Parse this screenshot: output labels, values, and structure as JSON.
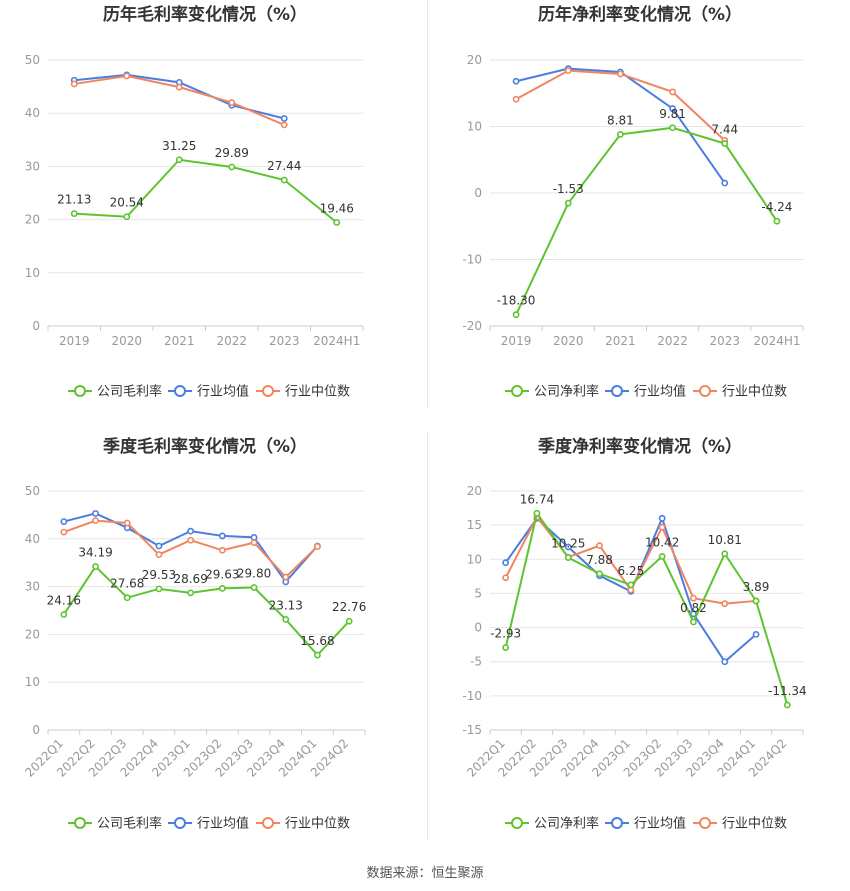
{
  "colors": {
    "company": "#5cc42f",
    "avg": "#4a7de0",
    "median": "#f0855e",
    "grid": "#e6e6e6",
    "axis": "#999999",
    "title": "#333333"
  },
  "legend": {
    "gross": "公司毛利率",
    "net": "公司净利率",
    "avg": "行业均值",
    "median": "行业中位数"
  },
  "footer": "数据来源：恒生聚源",
  "chart_data": [
    {
      "type": "line",
      "title": "历年毛利率变化情况（%）",
      "categories": [
        "2019",
        "2020",
        "2021",
        "2022",
        "2023",
        "2024H1"
      ],
      "ylim": [
        0,
        50
      ],
      "yticks": [
        0,
        10,
        20,
        30,
        40,
        50
      ],
      "series": [
        {
          "name": "公司毛利率",
          "key": "company",
          "values": [
            21.13,
            20.54,
            31.25,
            29.89,
            27.44,
            19.46
          ],
          "labels": [
            "21.13",
            "20.54",
            "31.25",
            "29.89",
            "27.44",
            "19.46"
          ]
        },
        {
          "name": "行业均值",
          "key": "avg",
          "values": [
            46.2,
            47.2,
            45.8,
            41.5,
            39.0,
            null
          ]
        },
        {
          "name": "行业中位数",
          "key": "median",
          "values": [
            45.5,
            47.0,
            44.9,
            42.0,
            37.8,
            null
          ]
        }
      ]
    },
    {
      "type": "line",
      "title": "历年净利率变化情况（%）",
      "categories": [
        "2019",
        "2020",
        "2021",
        "2022",
        "2023",
        "2024H1"
      ],
      "ylim": [
        -20,
        20
      ],
      "yticks": [
        -20,
        -10,
        0,
        10,
        20
      ],
      "series": [
        {
          "name": "公司净利率",
          "key": "company",
          "values": [
            -18.3,
            -1.53,
            8.81,
            9.81,
            7.44,
            -4.24
          ],
          "labels": [
            "-18.30",
            "-1.53",
            "8.81",
            "9.81",
            "7.44",
            "-4.24"
          ]
        },
        {
          "name": "行业均值",
          "key": "avg",
          "values": [
            16.8,
            18.7,
            18.2,
            12.7,
            1.5,
            null
          ]
        },
        {
          "name": "行业中位数",
          "key": "median",
          "values": [
            14.1,
            18.4,
            17.9,
            15.2,
            7.9,
            null
          ]
        }
      ]
    },
    {
      "type": "line",
      "title": "季度毛利率变化情况（%）",
      "categories": [
        "2022Q1",
        "2022Q2",
        "2022Q3",
        "2022Q4",
        "2023Q1",
        "2023Q2",
        "2023Q3",
        "2023Q4",
        "2024Q1",
        "2024Q2"
      ],
      "ylim": [
        0,
        50
      ],
      "yticks": [
        0,
        10,
        20,
        30,
        40,
        50
      ],
      "series": [
        {
          "name": "公司毛利率",
          "key": "company",
          "values": [
            24.16,
            34.19,
            27.68,
            29.53,
            28.69,
            29.63,
            29.8,
            23.13,
            15.68,
            22.76
          ],
          "labels": [
            "24.16",
            "34.19",
            "27.68",
            "29.53",
            "28.69",
            "29.63",
            "29.80",
            "23.13",
            "15.68",
            "22.76"
          ]
        },
        {
          "name": "行业均值",
          "key": "avg",
          "values": [
            43.6,
            45.3,
            42.3,
            38.5,
            41.6,
            40.6,
            40.3,
            31.0,
            38.5,
            null
          ]
        },
        {
          "name": "行业中位数",
          "key": "median",
          "values": [
            41.4,
            43.8,
            43.3,
            36.7,
            39.7,
            37.6,
            39.2,
            32.0,
            38.4,
            null
          ]
        }
      ]
    },
    {
      "type": "line",
      "title": "季度净利率变化情况（%）",
      "categories": [
        "2022Q1",
        "2022Q2",
        "2022Q3",
        "2022Q4",
        "2023Q1",
        "2023Q2",
        "2023Q3",
        "2023Q4",
        "2024Q1",
        "2024Q2"
      ],
      "ylim": [
        -15,
        20
      ],
      "yticks": [
        -15,
        -10,
        -5,
        0,
        5,
        10,
        15,
        20
      ],
      "series": [
        {
          "name": "公司净利率",
          "key": "company",
          "values": [
            -2.93,
            16.74,
            10.25,
            7.88,
            6.25,
            10.42,
            0.82,
            10.81,
            3.89,
            -11.34
          ],
          "labels": [
            "-2.93",
            "16.74",
            "10.25",
            "7.88",
            "6.25",
            "10.42",
            "0.82",
            "10.81",
            "3.89",
            "-11.34"
          ]
        },
        {
          "name": "行业均值",
          "key": "avg",
          "values": [
            9.5,
            16.0,
            11.8,
            7.6,
            5.3,
            16.0,
            2.0,
            -5.0,
            -1.0,
            null
          ]
        },
        {
          "name": "行业中位数",
          "key": "median",
          "values": [
            7.3,
            16.2,
            10.3,
            12.0,
            5.5,
            14.7,
            4.3,
            3.5,
            3.9,
            null
          ]
        }
      ]
    }
  ]
}
